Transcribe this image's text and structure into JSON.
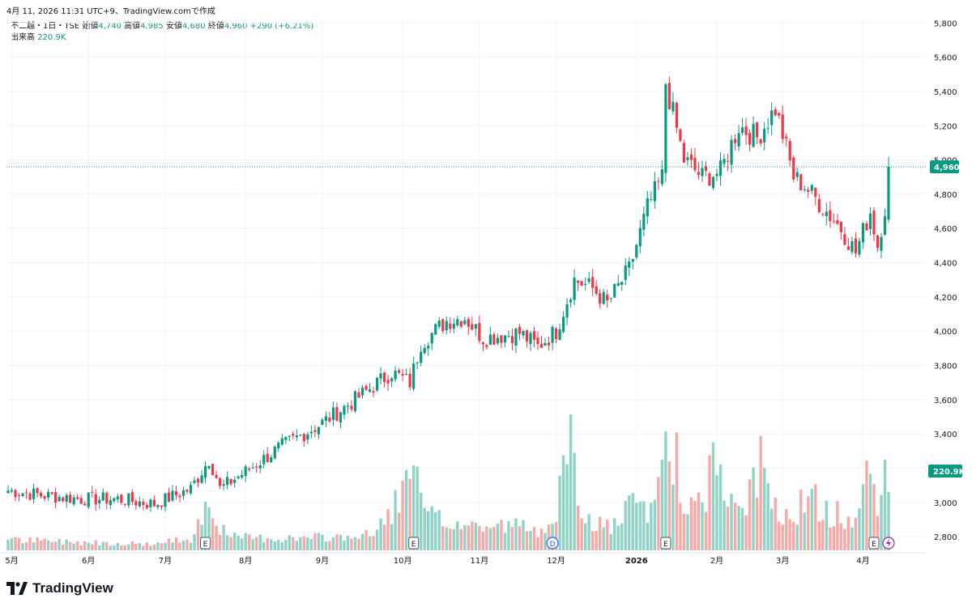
{
  "caption": "4月 11, 2026 11:31 UTC+9、TradingView.comで作成",
  "legend": {
    "symbol": "不二越・1日・TSE",
    "open_label": "始値",
    "open": "4,740",
    "high_label": "高値",
    "high": "4,985",
    "low_label": "安値",
    "low": "4,680",
    "close_label": "終値",
    "close": "4,960",
    "change": "+290 (+6.21%)",
    "volume_label": "出来高",
    "volume": "220.9K"
  },
  "brand": "TradingView",
  "colors": {
    "up": "#089981",
    "down": "#f23645",
    "up_volume": "#8fd3c6",
    "down_volume": "#f7a9a7",
    "grid": "#f0f3fa",
    "axis_text": "#131722"
  },
  "icons": [
    "tradingview-logo-icon",
    "dividend-marker-icon",
    "lightning-icon"
  ],
  "chart_data": {
    "type": "candlestick",
    "y_axis": {
      "side": "right",
      "ylim": [
        2720,
        5830
      ],
      "ticks": [
        2800,
        3000,
        3200,
        3400,
        3600,
        3800,
        4000,
        4200,
        4400,
        4600,
        4800,
        5000,
        5200,
        5400,
        5600,
        5800
      ],
      "tick_labels": [
        "2,800",
        "3,000",
        "3,200",
        "3,400",
        "3,600",
        "3,800",
        "4,000",
        "4,200",
        "4,400",
        "4,600",
        "4,800",
        "5,000",
        "5,200",
        "5,400",
        "5,600",
        "5,800"
      ]
    },
    "x_axis": {
      "labels": [
        "5月",
        "6月",
        "7月",
        "8月",
        "9月",
        "10月",
        "11月",
        "12月",
        "2026",
        "2月",
        "3月",
        "4月"
      ],
      "label_bar_index": [
        1,
        22,
        43,
        65,
        86,
        108,
        129,
        150,
        172,
        194,
        212,
        234
      ]
    },
    "last_price": {
      "value": 4960,
      "label": "4,960"
    },
    "last_volume": {
      "label": "220.9K"
    },
    "events": [
      {
        "type": "earnings",
        "label": "E",
        "bar_index": 54
      },
      {
        "type": "earnings",
        "label": "E",
        "bar_index": 111
      },
      {
        "type": "dividend",
        "label": "D",
        "bar_index": 149
      },
      {
        "type": "earnings",
        "label": "E",
        "bar_index": 180
      },
      {
        "type": "earnings",
        "label": "E",
        "bar_index": 237
      },
      {
        "type": "lightning",
        "label": "",
        "bar_index": 241
      }
    ],
    "anchors": [
      [
        0,
        3070
      ],
      [
        10,
        3040
      ],
      [
        20,
        3020
      ],
      [
        30,
        3020
      ],
      [
        40,
        2990
      ],
      [
        50,
        3080
      ],
      [
        55,
        3250
      ],
      [
        57,
        3150
      ],
      [
        58,
        3080
      ],
      [
        65,
        3180
      ],
      [
        75,
        3330
      ],
      [
        85,
        3450
      ],
      [
        95,
        3600
      ],
      [
        105,
        3760
      ],
      [
        110,
        3700
      ],
      [
        113,
        3930
      ],
      [
        120,
        4060
      ],
      [
        125,
        4080
      ],
      [
        130,
        3960
      ],
      [
        140,
        3990
      ],
      [
        145,
        3910
      ],
      [
        150,
        4000
      ],
      [
        155,
        4300
      ],
      [
        160,
        4250
      ],
      [
        164,
        4160
      ],
      [
        170,
        4360
      ],
      [
        175,
        4720
      ],
      [
        179,
        4900
      ],
      [
        180,
        5450
      ],
      [
        185,
        5000
      ],
      [
        190,
        4900
      ],
      [
        195,
        4930
      ],
      [
        200,
        5200
      ],
      [
        205,
        5130
      ],
      [
        210,
        5300
      ],
      [
        212,
        5150
      ],
      [
        215,
        4900
      ],
      [
        218,
        4850
      ],
      [
        222,
        4750
      ],
      [
        228,
        4600
      ],
      [
        232,
        4460
      ],
      [
        236,
        4700
      ],
      [
        238,
        4500
      ],
      [
        240,
        4720
      ],
      [
        241,
        4960
      ]
    ],
    "volume_pattern": [
      [
        0,
        75
      ],
      [
        20,
        60
      ],
      [
        40,
        45
      ],
      [
        50,
        90
      ],
      [
        55,
        370
      ],
      [
        57,
        220
      ],
      [
        60,
        95
      ],
      [
        80,
        85
      ],
      [
        100,
        110
      ],
      [
        111,
        530
      ],
      [
        113,
        380
      ],
      [
        115,
        240
      ],
      [
        120,
        200
      ],
      [
        130,
        170
      ],
      [
        140,
        180
      ],
      [
        145,
        120
      ],
      [
        150,
        330
      ],
      [
        152,
        500
      ],
      [
        154,
        710
      ],
      [
        156,
        400
      ],
      [
        158,
        220
      ],
      [
        165,
        160
      ],
      [
        172,
        340
      ],
      [
        176,
        260
      ],
      [
        180,
        800
      ],
      [
        182,
        760
      ],
      [
        185,
        350
      ],
      [
        190,
        300
      ],
      [
        194,
        760
      ],
      [
        196,
        340
      ],
      [
        200,
        260
      ],
      [
        206,
        600
      ],
      [
        210,
        330
      ],
      [
        214,
        260
      ],
      [
        220,
        380
      ],
      [
        224,
        260
      ],
      [
        228,
        260
      ],
      [
        232,
        200
      ],
      [
        236,
        620
      ],
      [
        238,
        400
      ],
      [
        241,
        390
      ]
    ],
    "volume_last_bars": [
      360,
      590,
      380
    ],
    "notes": "Daily OHLC candles interpolated between the anchor closes shown; volume bars drawn beneath."
  }
}
